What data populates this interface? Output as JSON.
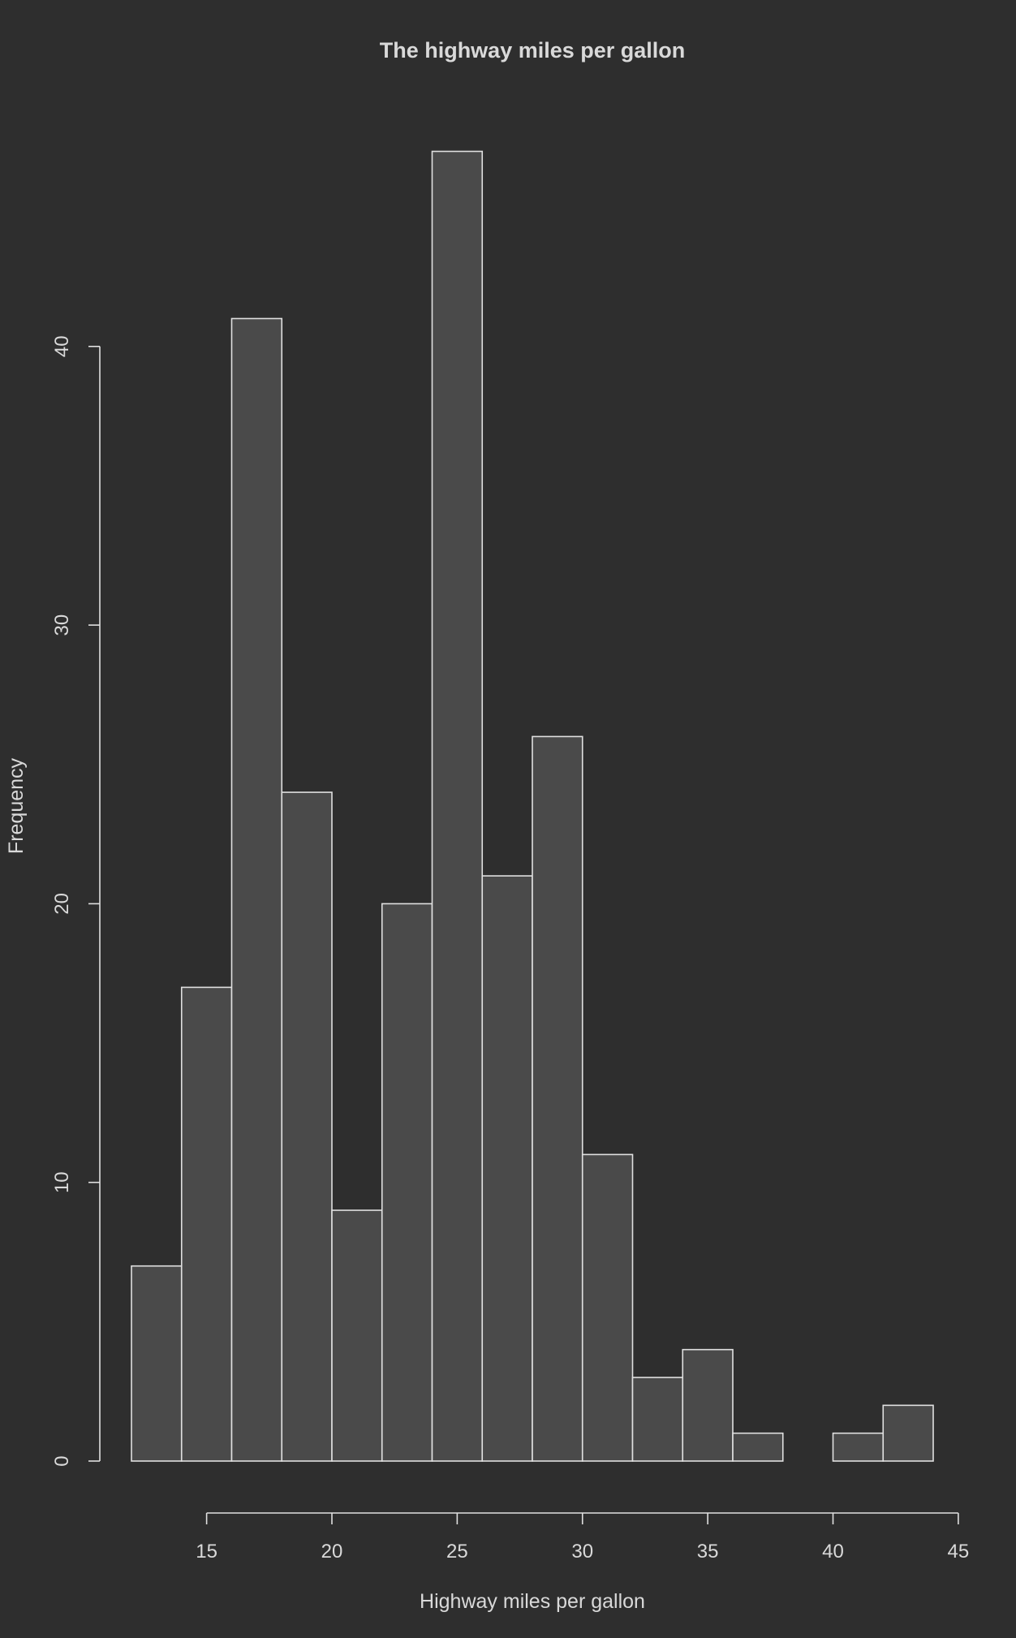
{
  "chart_data": {
    "type": "bar",
    "title": "The highway miles per gallon",
    "xlabel": "Highway miles per gallon",
    "ylabel": "Frequency",
    "bin_edges": [
      12,
      14,
      16,
      18,
      20,
      22,
      24,
      26,
      28,
      30,
      32,
      34,
      36,
      38,
      40,
      42,
      44
    ],
    "values": [
      7,
      17,
      41,
      24,
      9,
      20,
      47,
      21,
      26,
      11,
      3,
      4,
      1,
      0,
      1,
      2
    ],
    "xlim": [
      12,
      44
    ],
    "ylim": [
      0,
      47
    ],
    "x_ticks": [
      15,
      20,
      25,
      30,
      35,
      40,
      45
    ],
    "y_ticks": [
      0,
      10,
      20,
      30,
      40
    ],
    "grid": false,
    "colors": {
      "background": "#2e2e2e",
      "bar_fill": "#4a4a4a",
      "bar_stroke": "#e0e0e0",
      "text": "#d9d9d9"
    }
  }
}
